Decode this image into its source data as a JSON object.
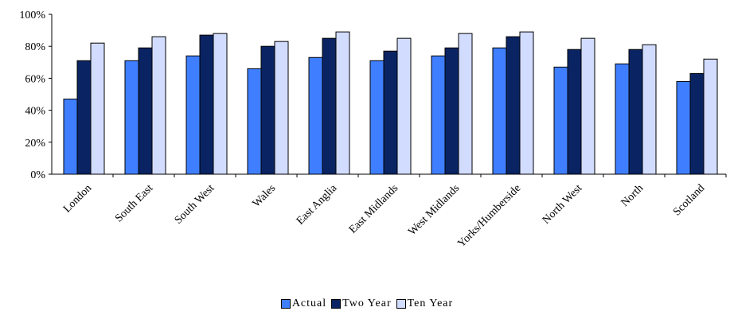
{
  "chart_data": {
    "type": "bar",
    "categories": [
      "London",
      "South East",
      "South West",
      "Wales",
      "East Anglia",
      "East Midlands",
      "West Midlands",
      "Yorks/Humberside",
      "North West",
      "North",
      "Scotland"
    ],
    "series": [
      {
        "name": "Actual",
        "color": "#3f7fff",
        "values": [
          47,
          71,
          74,
          66,
          73,
          71,
          74,
          79,
          67,
          69,
          58
        ]
      },
      {
        "name": "Two Year",
        "color": "#0a2463",
        "values": [
          71,
          79,
          87,
          80,
          85,
          77,
          79,
          86,
          78,
          78,
          63
        ]
      },
      {
        "name": "Ten Year",
        "color": "#d2dcff",
        "values": [
          82,
          86,
          88,
          83,
          89,
          85,
          88,
          89,
          85,
          81,
          72
        ]
      }
    ],
    "yticks": [
      "0%",
      "20%",
      "40%",
      "60%",
      "80%",
      "100%"
    ],
    "ylim": [
      0,
      100
    ],
    "grid": false,
    "legend_position": "bottom"
  }
}
